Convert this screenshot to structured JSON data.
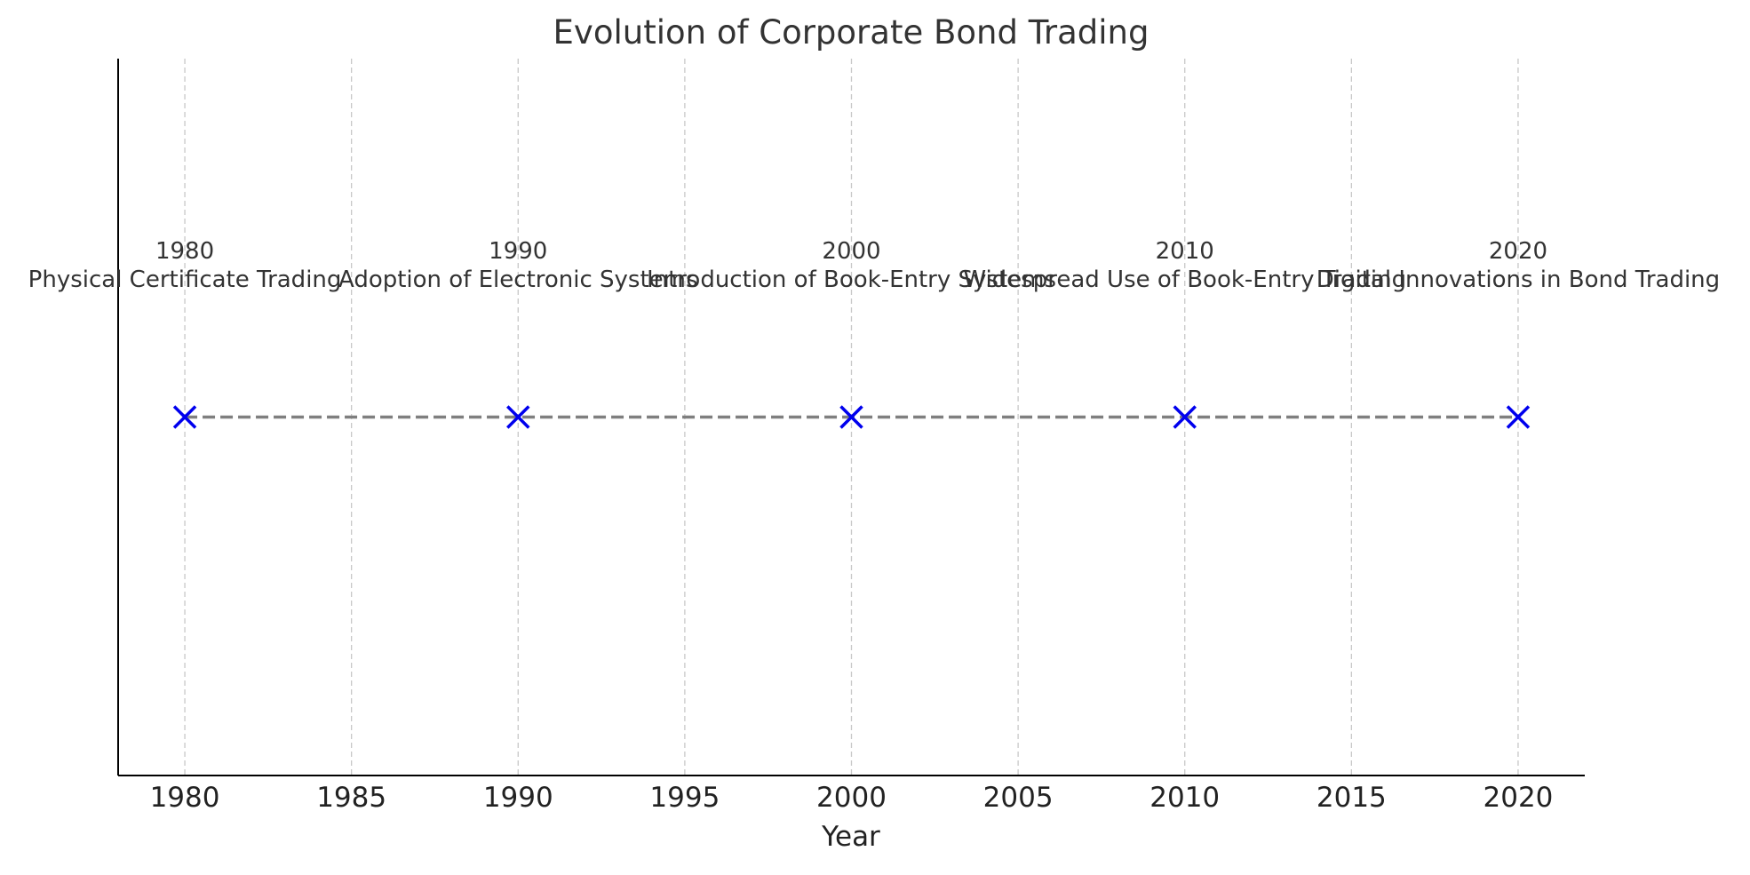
{
  "chart_data": {
    "type": "line",
    "title": "Evolution of Corporate Bond Trading",
    "xlabel": "Year",
    "ylabel": "",
    "xlim": [
      1978,
      2022
    ],
    "ylim": [
      -1,
      1
    ],
    "x_ticks": [
      1980,
      1985,
      1990,
      1995,
      2000,
      2005,
      2010,
      2015,
      2020
    ],
    "grid": "vertical dashed",
    "series": [
      {
        "marker": "x",
        "line_style": "dashed",
        "x": [
          1980,
          1990,
          2000,
          2010,
          2020
        ],
        "y": [
          0,
          0,
          0,
          0,
          0
        ]
      }
    ],
    "events": [
      {
        "year": "1980",
        "label": "Physical Certificate Trading"
      },
      {
        "year": "1990",
        "label": "Adoption of Electronic Systems"
      },
      {
        "year": "2000",
        "label": "Introduction of Book-Entry Systems"
      },
      {
        "year": "2010",
        "label": "Widespread Use of Book-Entry Trading"
      },
      {
        "year": "2020",
        "label": "Digital Innovations in Bond Trading"
      }
    ],
    "colors": {
      "marker": "#0000ee",
      "line": "#7f7f7f",
      "grid": "#c8c8c8",
      "axis": "#000000"
    }
  }
}
